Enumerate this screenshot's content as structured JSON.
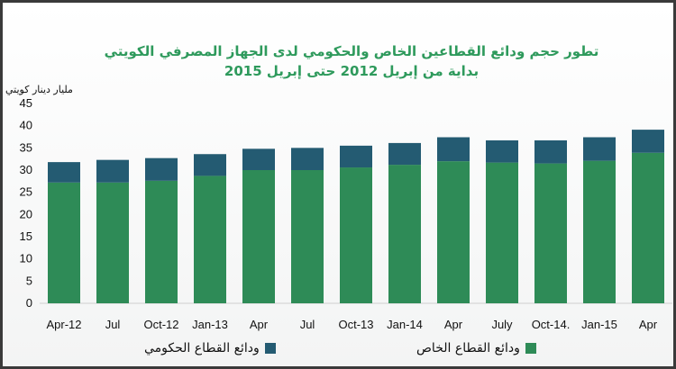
{
  "chart_data": {
    "type": "bar",
    "stacked": true,
    "title": "تطور حجم  ودائع القطاعين الخاص والحكومي لدى الجهاز المصرفي الكويتي",
    "subtitle": "بداية من إبريل 2012 حتى إبريل 2015",
    "ylabel": "مليار دينار كويتي",
    "xlabel": "",
    "ylim": [
      0,
      45
    ],
    "yticks": [
      "0",
      "5",
      "10",
      "15",
      "20",
      "25",
      "30",
      "35",
      "40",
      "45"
    ],
    "grid": false,
    "legend_position": "bottom",
    "categories": [
      "Apr-12",
      "Jul",
      "Oct-12",
      "Jan-13",
      "Apr",
      "Jul",
      "Oct-13",
      "Jan-14",
      "Apr",
      "July",
      "Oct-14.",
      "Jan-15",
      "Apr"
    ],
    "series": [
      {
        "name": "ودائع القطاع الخاص",
        "color": "#2e8b57",
        "values": [
          27.2,
          27.2,
          27.6,
          28.7,
          30.0,
          30.0,
          30.6,
          31.2,
          32.0,
          31.7,
          31.5,
          32.1,
          33.9
        ]
      },
      {
        "name": "ودائع القطاع الحكومي",
        "color": "#245b72",
        "values": [
          4.6,
          5.1,
          5.1,
          4.9,
          4.8,
          5.0,
          4.9,
          4.9,
          5.4,
          5.0,
          5.2,
          5.3,
          5.2
        ]
      }
    ]
  }
}
